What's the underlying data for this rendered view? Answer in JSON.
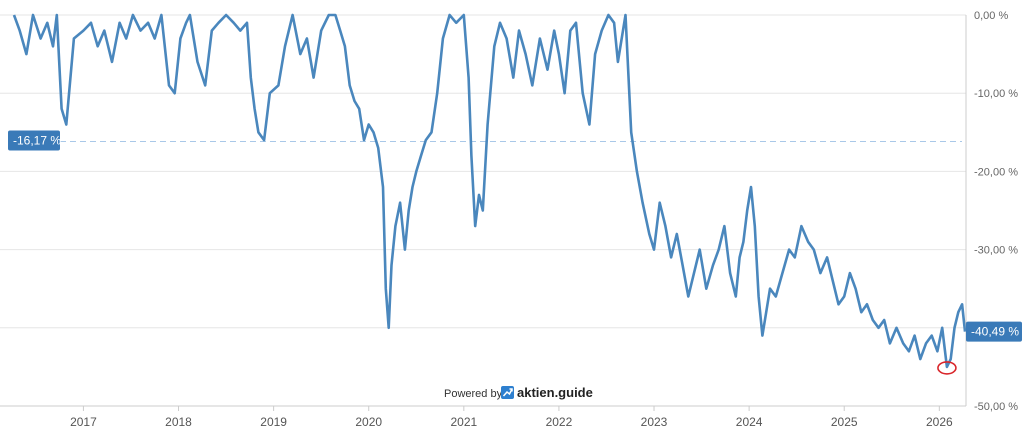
{
  "chart_data": {
    "type": "line",
    "title": "",
    "xlabel": "",
    "ylabel": "",
    "y_unit": "%",
    "ylim": [
      -50,
      0
    ],
    "yticks": [
      0,
      -10,
      -20,
      -30,
      -40,
      -50
    ],
    "ytick_labels": [
      "0,00 %",
      "-10,00 %",
      "-20,00 %",
      "-30,00 %",
      "-40,00 %",
      "-50,00 %"
    ],
    "xticks": [
      "2017",
      "2018",
      "2019",
      "2020",
      "2021",
      "2022",
      "2023",
      "2024",
      "2025",
      "2026"
    ],
    "xlim": [
      2016.27,
      2026.27
    ],
    "grid": true,
    "average": {
      "value": -16.17,
      "label": "-16,17 %"
    },
    "last": {
      "value": -40.49,
      "label": "-40,49 %"
    },
    "series": [
      {
        "x": [
          2016.27,
          2016.33,
          2016.4,
          2016.47,
          2016.55,
          2016.62,
          2016.68,
          2016.72,
          2016.77,
          2016.82,
          2016.9,
          2017.0,
          2017.08,
          2017.15,
          2017.22,
          2017.3,
          2017.38,
          2017.45,
          2017.52,
          2017.6,
          2017.68,
          2017.75,
          2017.82,
          2017.9,
          2017.96,
          2018.02,
          2018.08,
          2018.12,
          2018.2,
          2018.28,
          2018.35,
          2018.42,
          2018.5,
          2018.58,
          2018.65,
          2018.72,
          2018.76,
          2018.8,
          2018.84,
          2018.9,
          2018.96,
          2019.05,
          2019.12,
          2019.2,
          2019.28,
          2019.35,
          2019.42,
          2019.5,
          2019.58,
          2019.65,
          2019.7,
          2019.75,
          2019.8,
          2019.85,
          2019.9,
          2019.95,
          2020.0,
          2020.05,
          2020.1,
          2020.15,
          2020.18,
          2020.21,
          2020.24,
          2020.28,
          2020.33,
          2020.38,
          2020.42,
          2020.46,
          2020.5,
          2020.55,
          2020.6,
          2020.66,
          2020.72,
          2020.78,
          2020.85,
          2020.92,
          2021.0,
          2021.05,
          2021.08,
          2021.12,
          2021.16,
          2021.2,
          2021.25,
          2021.32,
          2021.38,
          2021.45,
          2021.52,
          2021.58,
          2021.65,
          2021.72,
          2021.8,
          2021.88,
          2021.95,
          2022.0,
          2022.06,
          2022.12,
          2022.18,
          2022.25,
          2022.32,
          2022.38,
          2022.45,
          2022.52,
          2022.58,
          2022.62,
          2022.66,
          2022.7,
          2022.76,
          2022.82,
          2022.88,
          2022.95,
          2023.0,
          2023.06,
          2023.12,
          2023.18,
          2023.24,
          2023.3,
          2023.36,
          2023.42,
          2023.48,
          2023.55,
          2023.62,
          2023.68,
          2023.74,
          2023.8,
          2023.86,
          2023.9,
          2023.94,
          2023.98,
          2024.02,
          2024.06,
          2024.1,
          2024.14,
          2024.18,
          2024.22,
          2024.28,
          2024.35,
          2024.42,
          2024.48,
          2024.55,
          2024.62,
          2024.68,
          2024.75,
          2024.82,
          2024.88,
          2024.94,
          2025.0,
          2025.06,
          2025.12,
          2025.18,
          2025.24,
          2025.3,
          2025.36,
          2025.42,
          2025.48,
          2025.55,
          2025.62,
          2025.68,
          2025.74,
          2025.8,
          2025.86,
          2025.92,
          2025.98,
          2026.03,
          2026.08,
          2026.12,
          2026.16,
          2026.2,
          2026.24,
          2026.27
        ],
        "y": [
          0,
          -2,
          -5,
          0,
          -3,
          -1,
          -4,
          0,
          -12,
          -14,
          -3,
          -2,
          -1,
          -4,
          -2,
          -6,
          -1,
          -3,
          0,
          -2,
          -1,
          -3,
          0,
          -9,
          -10,
          -3,
          -1,
          0,
          -6,
          -9,
          -2,
          -1,
          0,
          -1,
          -2,
          -1,
          -8,
          -12,
          -15,
          -16,
          -10,
          -9,
          -4,
          0,
          -5,
          -3,
          -8,
          -2,
          0,
          0,
          -2,
          -4,
          -9,
          -11,
          -12,
          -16,
          -14,
          -15,
          -17,
          -22,
          -35,
          -40,
          -32,
          -27,
          -24,
          -30,
          -25,
          -22,
          -20,
          -18,
          -16,
          -15,
          -10,
          -3,
          0,
          -1,
          0,
          -8,
          -18,
          -27,
          -23,
          -25,
          -14,
          -4,
          -1,
          -3,
          -8,
          -2,
          -5,
          -9,
          -3,
          -7,
          -2,
          -5,
          -10,
          -2,
          -1,
          -10,
          -14,
          -5,
          -2,
          0,
          -1,
          -6,
          -3,
          0,
          -15,
          -20,
          -24,
          -28,
          -30,
          -24,
          -27,
          -31,
          -28,
          -32,
          -36,
          -33,
          -30,
          -35,
          -32,
          -30,
          -27,
          -33,
          -36,
          -31,
          -29,
          -25,
          -22,
          -27,
          -36,
          -41,
          -38,
          -35,
          -36,
          -33,
          -30,
          -31,
          -27,
          -29,
          -30,
          -33,
          -31,
          -34,
          -37,
          -36,
          -33,
          -35,
          -38,
          -37,
          -39,
          -40,
          -39,
          -42,
          -40,
          -42,
          -43,
          -41,
          -44,
          -42,
          -41,
          -43,
          -40,
          -45,
          -44,
          -40,
          -38,
          -37,
          -40.49
        ]
      }
    ]
  },
  "colors": {
    "line": "#4a87bd",
    "badge": "#3a7ab8",
    "average_line": "#a9c8e8",
    "marker": "#d9262b",
    "logo": "#2d7fcf"
  },
  "credit": {
    "prefix": "Powered by",
    "brand": "aktien.guide",
    "logo_icon": "chart-up-arrow-icon"
  }
}
